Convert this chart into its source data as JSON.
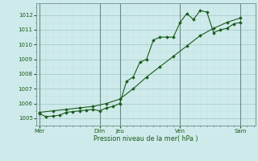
{
  "bg_color": "#ceeaea",
  "grid_major_color": "#aacccc",
  "grid_minor_color": "#c4e4e4",
  "line_color": "#1a5c1a",
  "marker_color": "#1a5c1a",
  "xlabel": "Pression niveau de la mer( hPa )",
  "ylim": [
    1004.5,
    1012.8
  ],
  "yticks": [
    1005,
    1006,
    1007,
    1008,
    1009,
    1010,
    1011,
    1012
  ],
  "x_day_labels": [
    "Mer",
    "Dim",
    "Jeu",
    "Ven",
    "Sam"
  ],
  "x_day_positions": [
    0,
    72,
    96,
    168,
    240
  ],
  "x_vlines": [
    0,
    72,
    96,
    168,
    240
  ],
  "xlim": [
    -4,
    258
  ],
  "line1_x": [
    0,
    8,
    16,
    24,
    32,
    40,
    48,
    56,
    64,
    72,
    80,
    88,
    96,
    104,
    112,
    120,
    128,
    136,
    144,
    152,
    160,
    168,
    176,
    184,
    192,
    200,
    208,
    216,
    224,
    232,
    240
  ],
  "line1_y": [
    1005.3,
    1005.1,
    1005.15,
    1005.2,
    1005.4,
    1005.45,
    1005.5,
    1005.55,
    1005.6,
    1005.5,
    1005.7,
    1005.8,
    1006.0,
    1007.5,
    1007.8,
    1008.8,
    1009.0,
    1010.3,
    1010.5,
    1010.5,
    1010.5,
    1011.5,
    1012.1,
    1011.7,
    1012.3,
    1012.2,
    1010.8,
    1011.0,
    1011.1,
    1011.4,
    1011.5
  ],
  "line2_x": [
    0,
    16,
    32,
    48,
    64,
    80,
    96,
    112,
    128,
    144,
    160,
    176,
    192,
    208,
    224,
    240
  ],
  "line2_y": [
    1005.4,
    1005.5,
    1005.6,
    1005.7,
    1005.8,
    1006.0,
    1006.3,
    1007.0,
    1007.8,
    1008.5,
    1009.2,
    1009.9,
    1010.6,
    1011.1,
    1011.5,
    1011.8
  ]
}
